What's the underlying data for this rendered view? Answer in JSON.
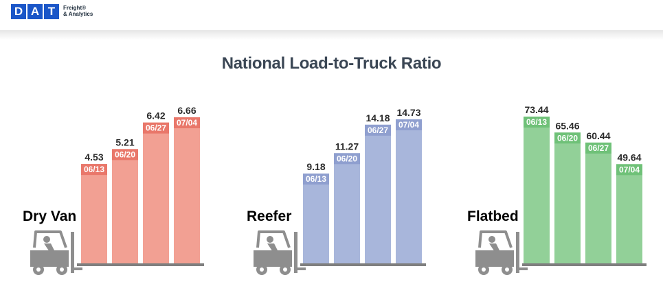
{
  "header": {
    "logo_letters": [
      "D",
      "A",
      "T"
    ],
    "logo_tm": "®",
    "logo_line1": "Freight",
    "logo_line2": "& Analytics",
    "brand_color": "#1a56c8"
  },
  "title": "National Load-to-Truck Ratio",
  "icon": "forklift-icon",
  "chart_data": [
    {
      "type": "bar",
      "label": "Dry Van",
      "color": "#f2a093",
      "band_color": "#e9776a",
      "categories": [
        "06/13",
        "06/20",
        "06/27",
        "07/04"
      ],
      "values": [
        4.53,
        5.21,
        6.42,
        6.66
      ],
      "value_labels": [
        "4.53",
        "5.21",
        "6.42",
        "6.66"
      ]
    },
    {
      "type": "bar",
      "label": "Reefer",
      "color": "#a8b6db",
      "band_color": "#8f9fcf",
      "categories": [
        "06/13",
        "06/20",
        "06/27",
        "07/04"
      ],
      "values": [
        9.18,
        11.27,
        14.18,
        14.73
      ],
      "value_labels": [
        "9.18",
        "11.27",
        "14.18",
        "14.73"
      ]
    },
    {
      "type": "bar",
      "label": "Flatbed",
      "color": "#92d098",
      "band_color": "#6fc178",
      "categories": [
        "06/13",
        "06/20",
        "06/27",
        "07/04"
      ],
      "values": [
        73.44,
        65.46,
        60.44,
        49.64
      ],
      "value_labels": [
        "73.44",
        "65.46",
        "60.44",
        "49.64"
      ]
    }
  ]
}
